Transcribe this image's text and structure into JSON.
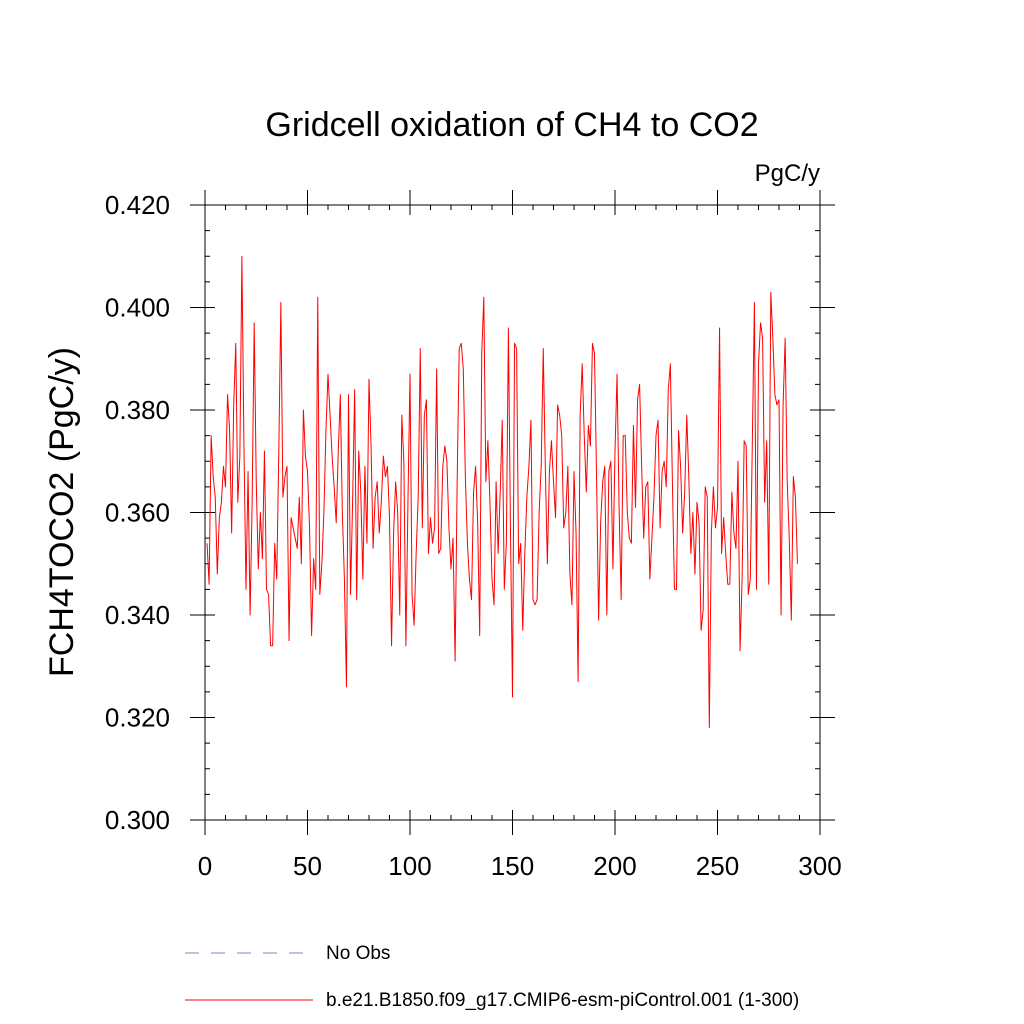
{
  "chart_data": {
    "type": "line",
    "title": "Gridcell oxidation of CH4 to CO2",
    "units": "PgC/y",
    "ylabel": "FCH4TOCO2  (PgC/y)",
    "xlabel": "",
    "xlim": [
      0,
      300
    ],
    "ylim": [
      0.3,
      0.42
    ],
    "xticks": [
      0,
      50,
      100,
      150,
      200,
      250,
      300
    ],
    "xtick_labels": [
      "0",
      "50",
      "100",
      "150",
      "200",
      "250",
      "300"
    ],
    "yticks": [
      0.3,
      0.32,
      0.34,
      0.36,
      0.38,
      0.4,
      0.42
    ],
    "ytick_labels": [
      "0.300",
      "0.320",
      "0.340",
      "0.360",
      "0.380",
      "0.400",
      "0.420"
    ],
    "grid": false,
    "legend": {
      "placement": "bottom-left",
      "entries": [
        {
          "label": "No Obs",
          "color": "#8080c0",
          "style": "dashed"
        },
        {
          "label": "b.e21.B1850.f09_g17.CMIP6-esm-piControl.001 (1-300)",
          "color": "#ff0000",
          "style": "solid"
        }
      ]
    },
    "series": [
      {
        "name": "b.e21.B1850.f09_g17.CMIP6-esm-piControl.001 (1-300)",
        "color": "#ff0000",
        "x_start": 1,
        "x_step": 1,
        "values": [
          0.354,
          0.346,
          0.375,
          0.367,
          0.363,
          0.348,
          0.359,
          0.362,
          0.369,
          0.365,
          0.383,
          0.376,
          0.356,
          0.381,
          0.393,
          0.362,
          0.371,
          0.41,
          0.373,
          0.345,
          0.368,
          0.34,
          0.362,
          0.397,
          0.366,
          0.349,
          0.36,
          0.351,
          0.372,
          0.345,
          0.344,
          0.334,
          0.334,
          0.354,
          0.347,
          0.372,
          0.401,
          0.363,
          0.367,
          0.369,
          0.335,
          0.359,
          0.357,
          0.355,
          0.353,
          0.363,
          0.35,
          0.38,
          0.371,
          0.368,
          0.357,
          0.336,
          0.351,
          0.345,
          0.402,
          0.344,
          0.35,
          0.36,
          0.376,
          0.387,
          0.379,
          0.371,
          0.365,
          0.358,
          0.372,
          0.383,
          0.36,
          0.347,
          0.326,
          0.383,
          0.344,
          0.362,
          0.384,
          0.343,
          0.372,
          0.364,
          0.347,
          0.369,
          0.354,
          0.386,
          0.373,
          0.353,
          0.363,
          0.366,
          0.356,
          0.362,
          0.371,
          0.367,
          0.369,
          0.359,
          0.334,
          0.356,
          0.366,
          0.36,
          0.34,
          0.379,
          0.37,
          0.334,
          0.362,
          0.387,
          0.344,
          0.338,
          0.352,
          0.363,
          0.392,
          0.357,
          0.379,
          0.382,
          0.352,
          0.359,
          0.354,
          0.357,
          0.388,
          0.352,
          0.353,
          0.369,
          0.373,
          0.37,
          0.357,
          0.349,
          0.355,
          0.331,
          0.366,
          0.392,
          0.393,
          0.388,
          0.367,
          0.354,
          0.347,
          0.343,
          0.364,
          0.369,
          0.358,
          0.336,
          0.391,
          0.402,
          0.366,
          0.374,
          0.362,
          0.347,
          0.342,
          0.366,
          0.352,
          0.364,
          0.378,
          0.345,
          0.354,
          0.396,
          0.357,
          0.324,
          0.393,
          0.392,
          0.35,
          0.354,
          0.337,
          0.352,
          0.363,
          0.369,
          0.378,
          0.343,
          0.342,
          0.343,
          0.36,
          0.369,
          0.392,
          0.369,
          0.35,
          0.368,
          0.374,
          0.366,
          0.359,
          0.381,
          0.379,
          0.375,
          0.357,
          0.36,
          0.369,
          0.348,
          0.342,
          0.368,
          0.356,
          0.327,
          0.379,
          0.389,
          0.375,
          0.364,
          0.377,
          0.373,
          0.393,
          0.391,
          0.367,
          0.339,
          0.358,
          0.366,
          0.369,
          0.34,
          0.368,
          0.37,
          0.349,
          0.372,
          0.387,
          0.361,
          0.343,
          0.375,
          0.375,
          0.36,
          0.355,
          0.354,
          0.377,
          0.361,
          0.382,
          0.385,
          0.369,
          0.355,
          0.365,
          0.366,
          0.347,
          0.355,
          0.363,
          0.375,
          0.378,
          0.357,
          0.368,
          0.37,
          0.365,
          0.384,
          0.389,
          0.366,
          0.345,
          0.345,
          0.376,
          0.369,
          0.356,
          0.364,
          0.379,
          0.367,
          0.352,
          0.36,
          0.348,
          0.362,
          0.358,
          0.337,
          0.341,
          0.365,
          0.363,
          0.318,
          0.356,
          0.365,
          0.357,
          0.361,
          0.396,
          0.352,
          0.359,
          0.352,
          0.346,
          0.346,
          0.364,
          0.356,
          0.353,
          0.37,
          0.333,
          0.347,
          0.374,
          0.373,
          0.344,
          0.347,
          0.374,
          0.401,
          0.345,
          0.389,
          0.397,
          0.394,
          0.362,
          0.374,
          0.346,
          0.403,
          0.394,
          0.383,
          0.381,
          0.382,
          0.34,
          0.381,
          0.394,
          0.366,
          0.355,
          0.339,
          0.367,
          0.363,
          0.35
        ]
      }
    ]
  }
}
